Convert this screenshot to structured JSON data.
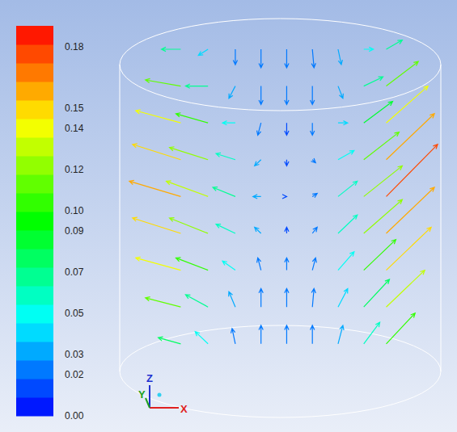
{
  "chart_data": {
    "type": "vector",
    "xlim": [
      -1,
      1
    ],
    "ylim": [
      -0.15,
      1.15
    ],
    "tick_labels": false,
    "colorbar": {
      "range": [
        0,
        0.19
      ],
      "ticks": [
        {
          "value": 0,
          "label": "0.00"
        },
        {
          "value": 0.02,
          "label": "0.02"
        },
        {
          "value": 0.03,
          "label": "0.03"
        },
        {
          "value": 0.05,
          "label": "0.05"
        },
        {
          "value": 0.07,
          "label": "0.07"
        },
        {
          "value": 0.09,
          "label": "0.09"
        },
        {
          "value": 0.1,
          "label": "0.10"
        },
        {
          "value": 0.12,
          "label": "0.12"
        },
        {
          "value": 0.14,
          "label": "0.14"
        },
        {
          "value": 0.15,
          "label": "0.15"
        },
        {
          "value": 0.18,
          "label": "0.18"
        }
      ]
    },
    "triad_labels": [
      "X",
      "Y",
      "Z"
    ],
    "vectors": {
      "x": [
        -0.62,
        -0.45,
        -0.28,
        -0.12,
        0.04,
        0.2,
        0.36,
        0.52,
        0.66,
        -0.62,
        -0.45,
        -0.28,
        -0.12,
        0.04,
        0.2,
        0.36,
        0.52,
        0.66,
        -0.62,
        -0.45,
        -0.28,
        -0.12,
        0.04,
        0.2,
        0.36,
        0.52,
        0.66,
        -0.62,
        -0.45,
        -0.28,
        -0.12,
        0.04,
        0.2,
        0.36,
        0.52,
        0.66,
        -0.62,
        -0.45,
        -0.28,
        -0.12,
        0.04,
        0.2,
        0.36,
        0.52,
        0.66,
        -0.62,
        -0.45,
        -0.28,
        -0.12,
        0.04,
        0.2,
        0.36,
        0.52,
        0.66,
        -0.62,
        -0.45,
        -0.28,
        -0.12,
        0.04,
        0.2,
        0.36,
        0.52,
        0.66,
        -0.62,
        -0.45,
        -0.28,
        -0.12,
        0.04,
        0.2,
        0.36,
        0.52,
        0.66,
        -0.62,
        -0.45,
        -0.28,
        -0.12,
        0.04,
        0.2,
        0.36,
        0.52,
        0.66
      ],
      "y": [
        1.05,
        1.05,
        1.05,
        1.05,
        1.05,
        1.05,
        1.05,
        1.05,
        1.05,
        0.93,
        0.93,
        0.93,
        0.93,
        0.93,
        0.93,
        0.93,
        0.93,
        0.93,
        0.81,
        0.81,
        0.81,
        0.81,
        0.81,
        0.81,
        0.81,
        0.81,
        0.81,
        0.69,
        0.69,
        0.69,
        0.69,
        0.69,
        0.69,
        0.69,
        0.69,
        0.69,
        0.57,
        0.57,
        0.57,
        0.57,
        0.57,
        0.57,
        0.57,
        0.57,
        0.57,
        0.45,
        0.45,
        0.45,
        0.45,
        0.45,
        0.45,
        0.45,
        0.45,
        0.45,
        0.33,
        0.33,
        0.33,
        0.33,
        0.33,
        0.33,
        0.33,
        0.33,
        0.33,
        0.21,
        0.21,
        0.21,
        0.21,
        0.21,
        0.21,
        0.21,
        0.21,
        0.21,
        0.09,
        0.09,
        0.09,
        0.09,
        0.09,
        0.09,
        0.09,
        0.09,
        0.09
      ],
      "dx": [
        -0.12,
        -0.06,
        0,
        0,
        0,
        0.01,
        0.02,
        0.06,
        0.1,
        -0.22,
        -0.14,
        -0.04,
        0,
        0,
        0,
        0.03,
        0.12,
        0.2,
        -0.28,
        -0.2,
        -0.08,
        -0.02,
        0,
        0,
        0.06,
        0.18,
        0.26,
        -0.3,
        -0.24,
        -0.12,
        -0.04,
        0,
        0.02,
        0.1,
        0.22,
        0.3,
        -0.32,
        -0.26,
        -0.14,
        -0.05,
        0,
        0.03,
        0.12,
        0.24,
        0.32,
        -0.3,
        -0.24,
        -0.12,
        -0.04,
        0,
        0.03,
        0.12,
        0.24,
        0.3,
        -0.28,
        -0.2,
        -0.08,
        -0.02,
        0,
        0.02,
        0.1,
        0.2,
        0.28,
        -0.22,
        -0.14,
        -0.04,
        0,
        0,
        0.01,
        0.06,
        0.16,
        0.24,
        -0.14,
        -0.08,
        -0.02,
        0,
        0,
        0,
        0.03,
        0.1,
        0.18
      ],
      "dy": [
        0,
        -0.02,
        -0.05,
        -0.06,
        -0.06,
        -0.06,
        -0.05,
        0,
        0.03,
        0.02,
        0,
        -0.04,
        -0.06,
        -0.06,
        -0.06,
        -0.04,
        0.03,
        0.08,
        0.04,
        0.03,
        0,
        -0.04,
        -0.04,
        -0.04,
        0,
        0.07,
        0.12,
        0.05,
        0.04,
        0.02,
        -0.02,
        -0.02,
        -0.01,
        0.03,
        0.09,
        0.15,
        0.05,
        0.05,
        0.03,
        0,
        0,
        0.01,
        0.05,
        0.1,
        0.17,
        0.05,
        0.05,
        0.03,
        0.02,
        0.02,
        0.02,
        0.06,
        0.11,
        0.15,
        0.04,
        0.04,
        0.03,
        0.04,
        0.04,
        0.04,
        0.06,
        0.1,
        0.14,
        0.03,
        0.04,
        0.05,
        0.06,
        0.06,
        0.06,
        0.06,
        0.09,
        0.12,
        0.02,
        0.04,
        0.05,
        0.06,
        0.06,
        0.06,
        0.06,
        0.07,
        0.1
      ],
      "magnitude": [
        0.07,
        0.04,
        0.02,
        0.02,
        0.02,
        0.02,
        0.03,
        0.05,
        0.07,
        0.11,
        0.07,
        0.03,
        0.02,
        0.02,
        0.02,
        0.03,
        0.07,
        0.11,
        0.14,
        0.1,
        0.05,
        0.02,
        0.01,
        0.02,
        0.04,
        0.09,
        0.14,
        0.15,
        0.12,
        0.06,
        0.03,
        0.01,
        0.02,
        0.05,
        0.11,
        0.16,
        0.16,
        0.13,
        0.07,
        0.03,
        0.01,
        0.02,
        0.06,
        0.12,
        0.18,
        0.15,
        0.12,
        0.06,
        0.03,
        0.01,
        0.02,
        0.06,
        0.12,
        0.16,
        0.14,
        0.1,
        0.05,
        0.02,
        0.02,
        0.02,
        0.05,
        0.1,
        0.15,
        0.11,
        0.07,
        0.03,
        0.02,
        0.02,
        0.02,
        0.04,
        0.08,
        0.13,
        0.08,
        0.05,
        0.02,
        0.02,
        0.02,
        0.02,
        0.03,
        0.06,
        0.1
      ]
    }
  }
}
